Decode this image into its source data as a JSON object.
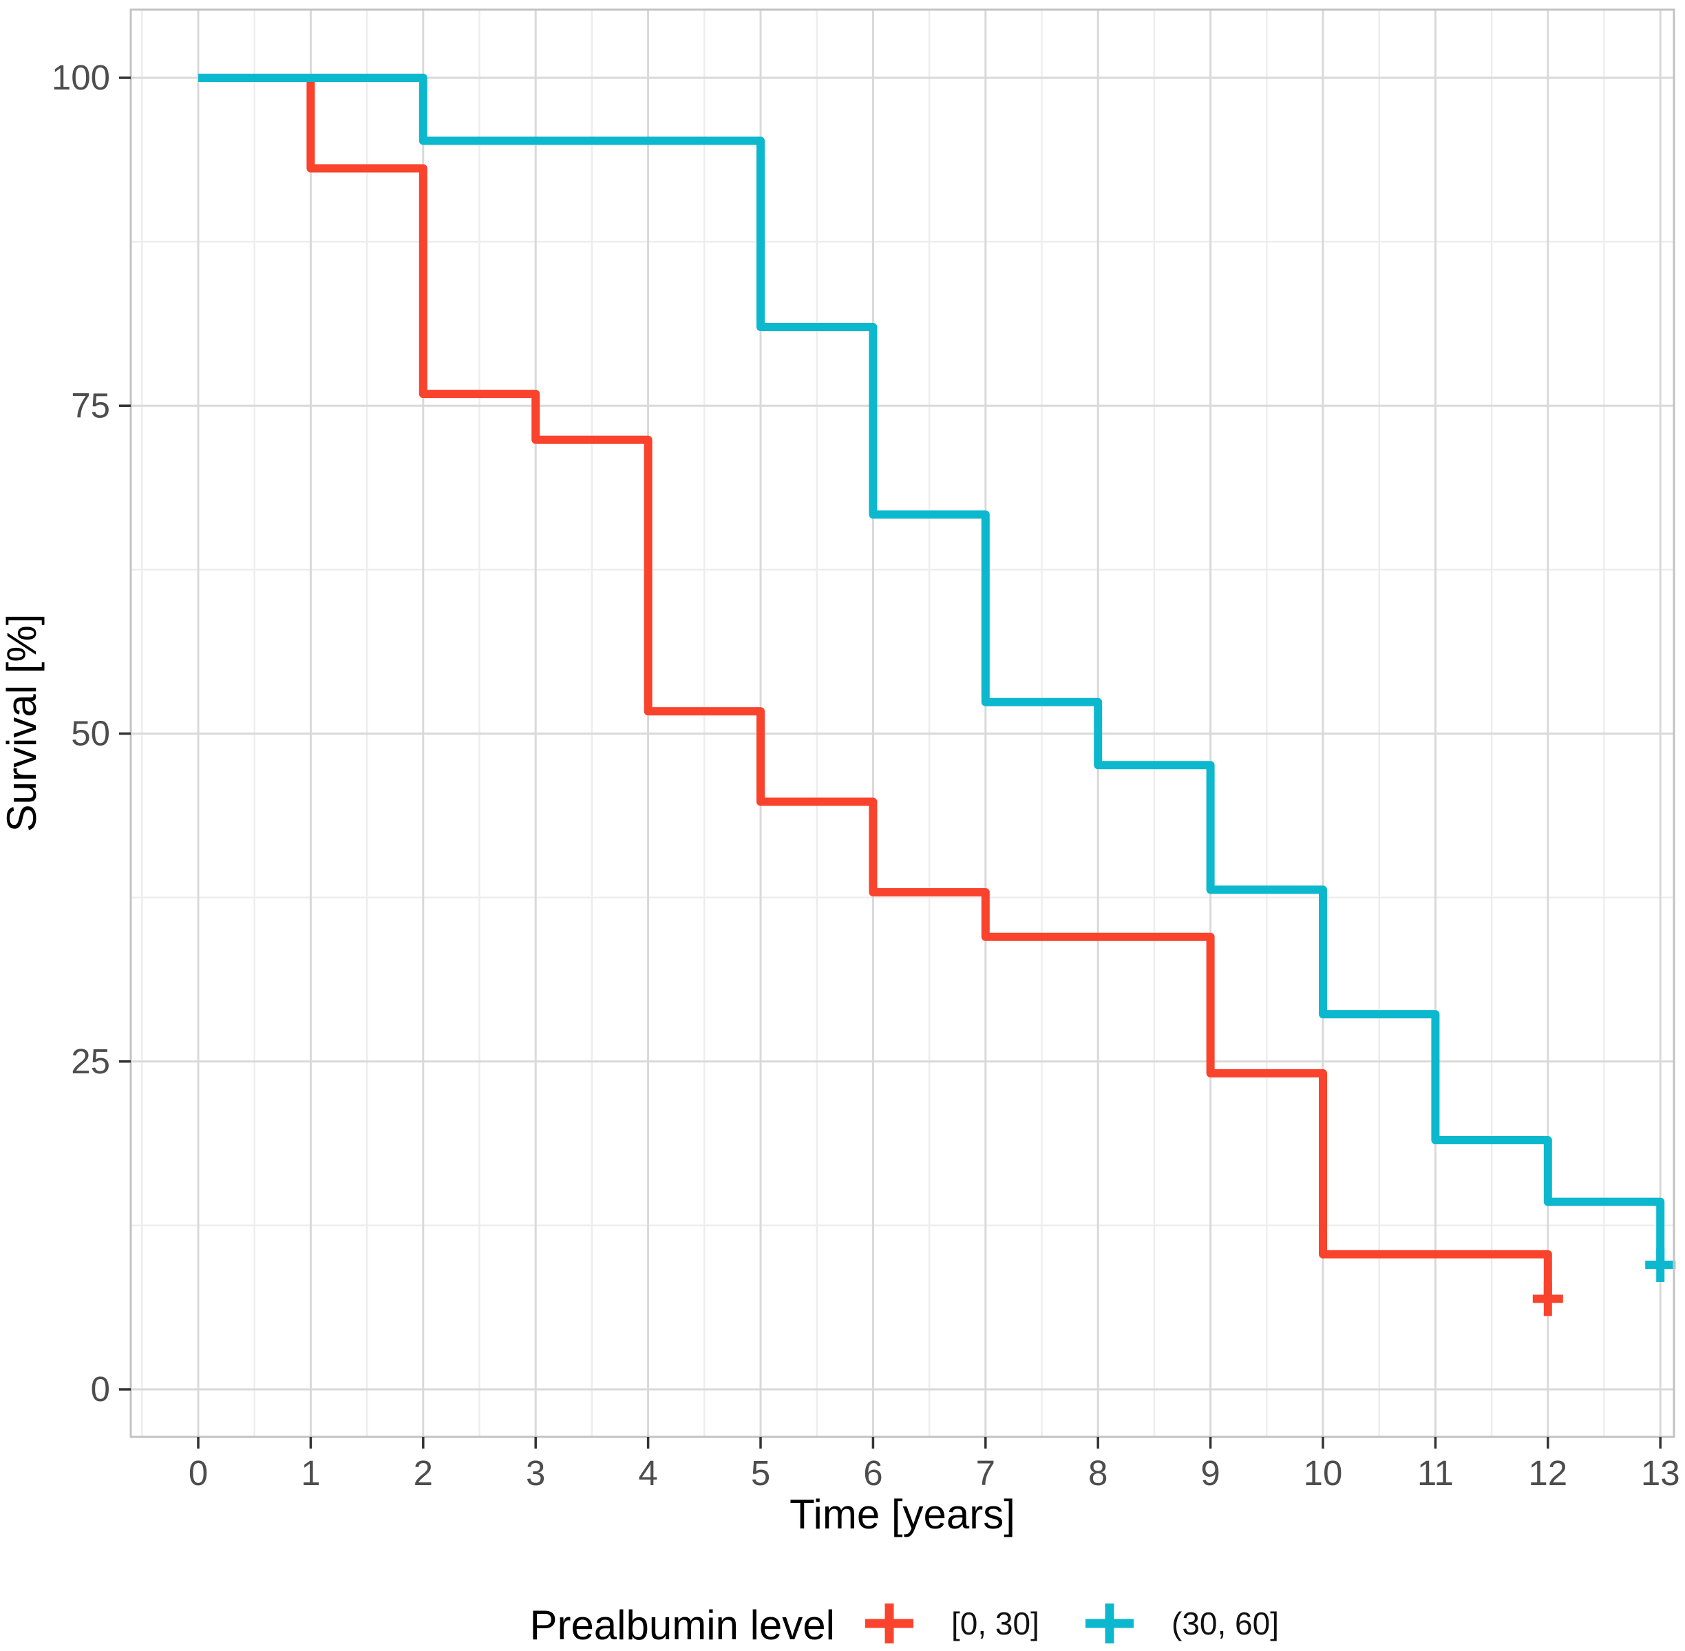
{
  "page": {
    "background": "#ffffff",
    "description": "Kaplan-Meier survival curves by prealbumin level"
  },
  "colors": {
    "series_red": "#FA432C",
    "series_cyan": "#0CB8CE",
    "grid_major": "#d9d9d9",
    "grid_minor": "#ededed",
    "panel_border": "#c3c3c3",
    "tick_mark": "#333333",
    "tick_text": "#4d4d4d",
    "title_text": "#000000"
  },
  "chart_data": {
    "type": "line",
    "subtype": "kaplan-meier-step",
    "title": "",
    "xlabel": "Time [years]",
    "ylabel": "Survival [%]",
    "xlim": [
      -0.65,
      13.2
    ],
    "ylim": [
      -3.6,
      105.2
    ],
    "x_ticks": [
      0,
      1,
      2,
      3,
      4,
      5,
      6,
      7,
      8,
      9,
      10,
      11,
      12,
      13
    ],
    "y_ticks": [
      0,
      25,
      50,
      75,
      100
    ],
    "x_minor": [
      -0.5,
      0.5,
      1.5,
      2.5,
      3.5,
      4.5,
      5.5,
      6.5,
      7.5,
      8.5,
      9.5,
      10.5,
      11.5,
      12.5
    ],
    "y_minor": [
      12.5,
      37.5,
      62.5,
      87.5
    ],
    "grid": true,
    "legend_position": "bottom",
    "legend_title": "Prealbumin level",
    "series": [
      {
        "name": "[0, 30]",
        "color": "#FA432C",
        "step": "post",
        "points": [
          [
            0,
            100
          ],
          [
            1,
            93.1
          ],
          [
            2,
            75.9
          ],
          [
            3,
            72.4
          ],
          [
            4,
            51.7
          ],
          [
            5,
            44.8
          ],
          [
            6,
            37.9
          ],
          [
            7,
            34.5
          ],
          [
            9,
            24.1
          ],
          [
            10,
            10.3
          ],
          [
            12,
            6.9
          ]
        ],
        "censored": [
          [
            12,
            6.9
          ]
        ]
      },
      {
        "name": "(30, 60]",
        "color": "#0CB8CE",
        "step": "post",
        "points": [
          [
            0,
            100
          ],
          [
            2,
            95.2
          ],
          [
            5,
            81.0
          ],
          [
            6,
            66.7
          ],
          [
            7,
            52.4
          ],
          [
            8,
            47.6
          ],
          [
            9,
            38.1
          ],
          [
            10,
            28.6
          ],
          [
            11,
            19.0
          ],
          [
            12,
            14.3
          ],
          [
            13,
            9.5
          ]
        ],
        "censored": [
          [
            13,
            9.5
          ]
        ]
      }
    ]
  }
}
